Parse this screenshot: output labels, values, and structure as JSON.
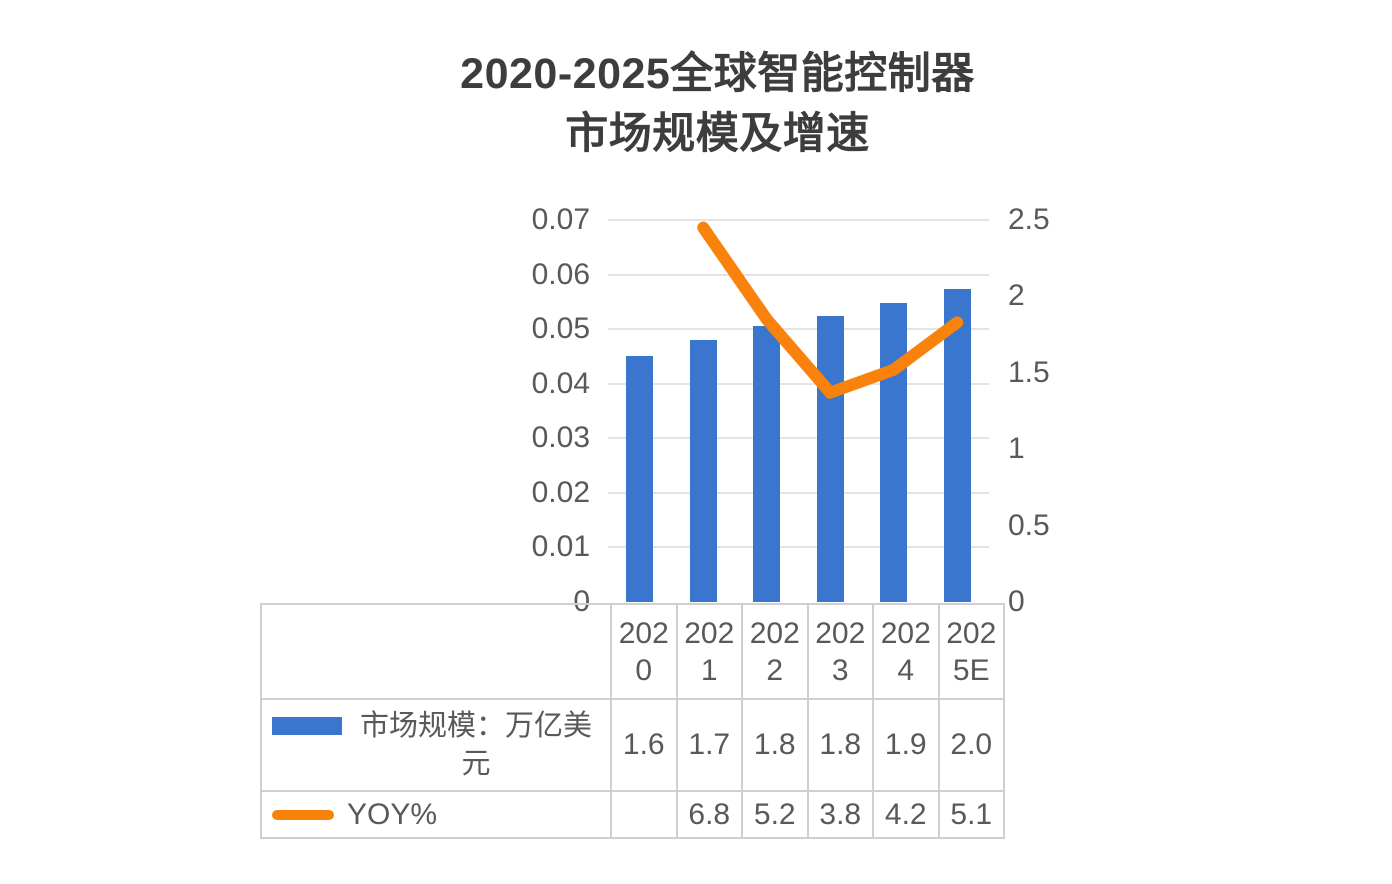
{
  "title": {
    "line1": "2020-2025全球智能控制器",
    "line2": "市场规模及增速"
  },
  "chart_data": {
    "type": "combo-bar-line",
    "title": "2020-2025全球智能控制器市场规模及增速",
    "categories": [
      "2020",
      "2021",
      "2022",
      "2023",
      "2024",
      "2025E"
    ],
    "series": [
      {
        "name": "市场规模：万亿美元",
        "type": "bar",
        "axis": "left",
        "color": "#3B76CE",
        "values": [
          1.6,
          1.7,
          1.8,
          1.8,
          1.9,
          2.0
        ],
        "plotted_values": [
          0.045,
          0.048,
          0.0505,
          0.0525,
          0.0547,
          0.0574
        ]
      },
      {
        "name": "YOY%",
        "type": "line",
        "axis": "right",
        "color": "#F8820B",
        "values": [
          null,
          6.8,
          5.2,
          3.8,
          4.2,
          5.1
        ],
        "plotted_values": [
          null,
          2.45,
          1.85,
          1.37,
          1.52,
          1.83
        ]
      }
    ],
    "left_axis": {
      "min": 0,
      "max": 0.07,
      "ticks": [
        "0.07",
        "0.06",
        "0.05",
        "0.04",
        "0.03",
        "0.02",
        "0.01",
        "0"
      ]
    },
    "right_axis": {
      "min": 0,
      "max": 2.5,
      "ticks": [
        "2.5",
        "2",
        "1.5",
        "1",
        "0.5",
        "0"
      ]
    },
    "grid": true,
    "legend_position": "table-rows-left"
  },
  "colors": {
    "bar": "#3B76CE",
    "line": "#F8820B",
    "grid": "#E4E4E4",
    "table_border": "#CFCFCF",
    "text": "#595959",
    "title_text": "#3D3D3D"
  }
}
